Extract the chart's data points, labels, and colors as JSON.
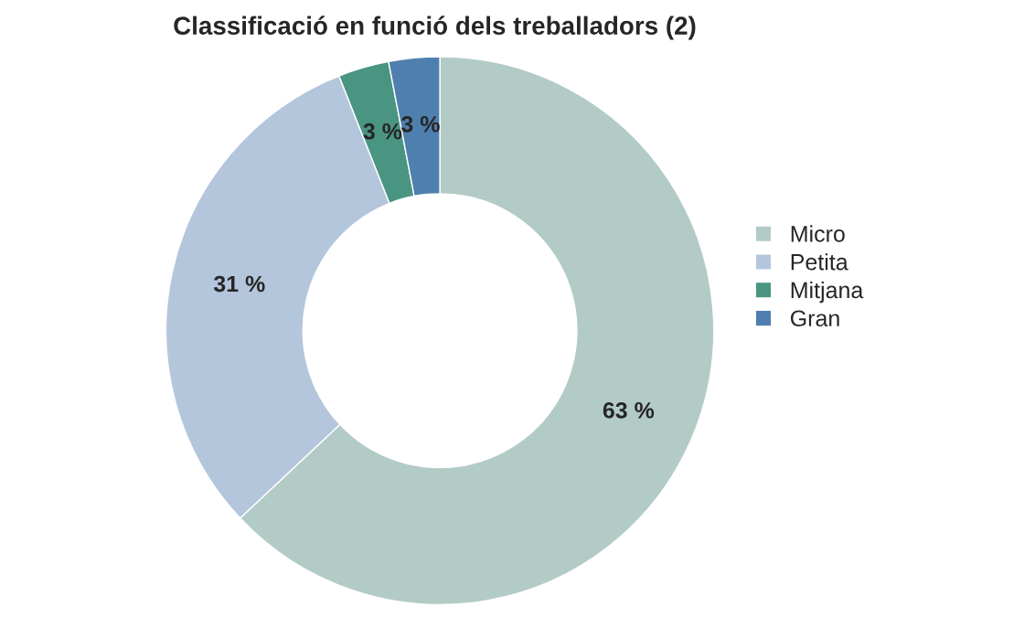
{
  "chart_data": {
    "type": "donut",
    "title": "Classificació en funció dels treballadors (2)",
    "categories": [
      "Micro",
      "Petita",
      "Mitjana",
      "Gran"
    ],
    "values": [
      63,
      31,
      3,
      3
    ],
    "colors": [
      "#b3cbc6",
      "#b4c6dc",
      "#4a9582",
      "#4f7fae"
    ],
    "value_labels": [
      "63 %",
      "31 %",
      "3 %",
      "3 %"
    ],
    "legend": "right"
  }
}
